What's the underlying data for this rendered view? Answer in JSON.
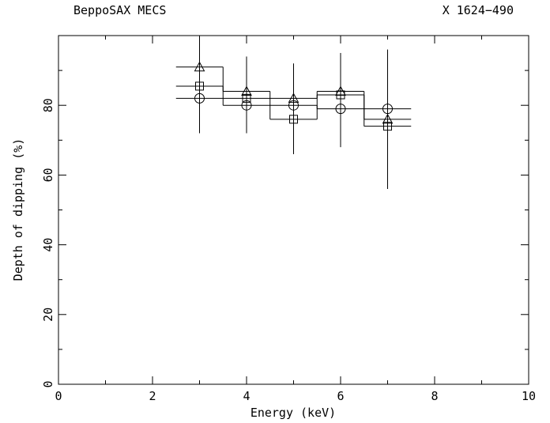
{
  "chart_data": {
    "type": "scatter",
    "title_left": "BeppoSAX MECS",
    "title_right": "X 1624−490",
    "xlabel": "Energy (keV)",
    "ylabel": "Depth of dipping (%)",
    "xlim": [
      0,
      10
    ],
    "ylim": [
      0,
      100
    ],
    "x_ticks": [
      "0",
      "2",
      "4",
      "6",
      "8",
      "10"
    ],
    "y_ticks": [
      "0",
      "20",
      "40",
      "60",
      "80"
    ],
    "series": [
      {
        "marker": "triangle",
        "points": [
          {
            "x": 3,
            "x_lo": 2.5,
            "x_hi": 3.5,
            "y": 91,
            "y_lo": 80,
            "y_hi": 100
          },
          {
            "x": 4,
            "x_lo": 3.5,
            "x_hi": 4.5,
            "y": 84,
            "y_lo": 74,
            "y_hi": 94
          },
          {
            "x": 5,
            "x_lo": 4.5,
            "x_hi": 5.5,
            "y": 82,
            "y_lo": 72,
            "y_hi": 92
          },
          {
            "x": 6,
            "x_lo": 5.5,
            "x_hi": 6.5,
            "y": 84,
            "y_lo": 73,
            "y_hi": 95
          },
          {
            "x": 7,
            "x_lo": 6.5,
            "x_hi": 7.5,
            "y": 76,
            "y_lo": 60,
            "y_hi": 94
          }
        ]
      },
      {
        "marker": "square",
        "points": [
          {
            "x": 3,
            "x_lo": 2.5,
            "x_hi": 3.5,
            "y": 85.5,
            "y_lo": 75,
            "y_hi": 96
          },
          {
            "x": 4,
            "x_lo": 3.5,
            "x_hi": 4.5,
            "y": 82,
            "y_lo": 72,
            "y_hi": 93
          },
          {
            "x": 5,
            "x_lo": 4.5,
            "x_hi": 5.5,
            "y": 76,
            "y_lo": 66,
            "y_hi": 86
          },
          {
            "x": 6,
            "x_lo": 5.5,
            "x_hi": 6.5,
            "y": 83,
            "y_lo": 72,
            "y_hi": 94
          },
          {
            "x": 7,
            "x_lo": 6.5,
            "x_hi": 7.5,
            "y": 74,
            "y_lo": 56,
            "y_hi": 92
          }
        ]
      },
      {
        "marker": "circle",
        "points": [
          {
            "x": 3,
            "x_lo": 2.5,
            "x_hi": 3.5,
            "y": 82,
            "y_lo": 72,
            "y_hi": 92
          },
          {
            "x": 4,
            "x_lo": 3.5,
            "x_hi": 4.5,
            "y": 80,
            "y_lo": 72,
            "y_hi": 88
          },
          {
            "x": 5,
            "x_lo": 4.5,
            "x_hi": 5.5,
            "y": 80,
            "y_lo": 70,
            "y_hi": 90
          },
          {
            "x": 6,
            "x_lo": 5.5,
            "x_hi": 6.5,
            "y": 79,
            "y_lo": 68,
            "y_hi": 90
          },
          {
            "x": 7,
            "x_lo": 6.5,
            "x_hi": 7.5,
            "y": 79,
            "y_lo": 62,
            "y_hi": 96
          }
        ]
      }
    ]
  }
}
